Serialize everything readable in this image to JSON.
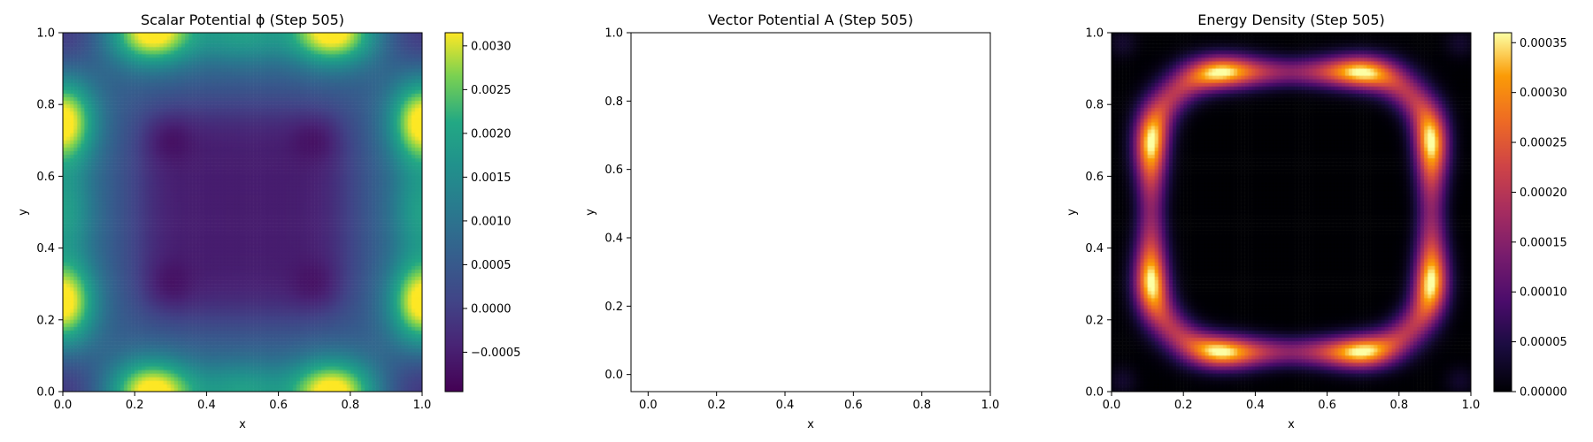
{
  "chart_data": [
    {
      "type": "heatmap",
      "title": "Scalar Potential ϕ (Step 505)",
      "xlabel": "x",
      "ylabel": "y",
      "xlim": [
        0.0,
        1.0
      ],
      "ylim": [
        0.0,
        1.0
      ],
      "x_ticks": [
        "0.0",
        "0.2",
        "0.4",
        "0.6",
        "0.8",
        "1.0"
      ],
      "y_ticks": [
        "0.0",
        "0.2",
        "0.4",
        "0.6",
        "0.8",
        "1.0"
      ],
      "colormap": "viridis",
      "colorbar": {
        "range": [
          -0.00095,
          0.00315
        ],
        "ticks": [
          -0.0005,
          0.0,
          0.0005,
          0.001,
          0.0015,
          0.002,
          0.0025,
          0.003
        ],
        "tick_labels": [
          "−0.0005",
          "0.0000",
          "0.0005",
          "0.0010",
          "0.0015",
          "0.0020",
          "0.0025",
          "0.0030"
        ]
      }
    },
    {
      "type": "scatter",
      "title": "Vector Potential A (Step 505)",
      "xlabel": "x",
      "ylabel": "y",
      "xlim": [
        -0.05,
        1.0
      ],
      "ylim": [
        -0.05,
        1.0
      ],
      "x_ticks": [
        "0.0",
        "0.2",
        "0.4",
        "0.6",
        "0.8",
        "1.0"
      ],
      "y_ticks": [
        "0.0",
        "0.2",
        "0.4",
        "0.6",
        "0.8",
        "1.0"
      ],
      "series": []
    },
    {
      "type": "heatmap",
      "title": "Energy Density (Step 505)",
      "xlabel": "x",
      "ylabel": "y",
      "xlim": [
        0.0,
        1.0
      ],
      "ylim": [
        0.0,
        1.0
      ],
      "x_ticks": [
        "0.0",
        "0.2",
        "0.4",
        "0.6",
        "0.8",
        "1.0"
      ],
      "y_ticks": [
        "0.0",
        "0.2",
        "0.4",
        "0.6",
        "0.8",
        "1.0"
      ],
      "colormap": "inferno",
      "colorbar": {
        "range": [
          0.0,
          0.00036
        ],
        "ticks": [
          0.0,
          5e-05,
          0.0001,
          0.00015,
          0.0002,
          0.00025,
          0.0003,
          0.00035
        ],
        "tick_labels": [
          "0.00000",
          "0.00005",
          "0.00010",
          "0.00015",
          "0.00020",
          "0.00025",
          "0.00030",
          "0.00035"
        ]
      }
    }
  ]
}
